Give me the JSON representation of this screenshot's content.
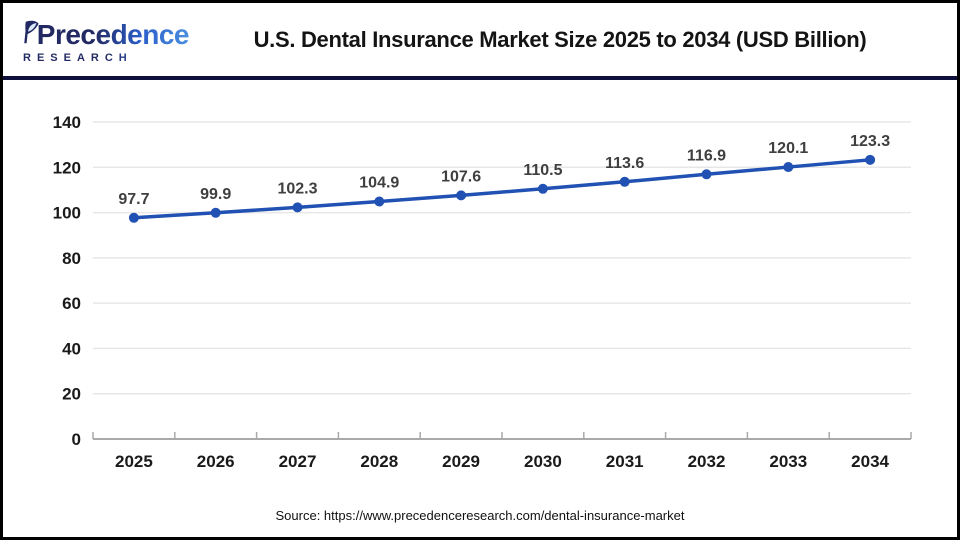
{
  "header": {
    "logo": {
      "word": "Precedence",
      "subtitle": "RESEARCH",
      "leaf_icon": "leaf-p-icon",
      "brand_navy": "#232a63",
      "brand_blue": "#2e6fd8"
    },
    "title": "U.S. Dental Insurance Market Size 2025 to 2034 (USD Billion)"
  },
  "chart_data": {
    "type": "line",
    "title": "U.S. Dental Insurance Market Size 2025 to 2034 (USD Billion)",
    "categories": [
      "2025",
      "2026",
      "2027",
      "2028",
      "2029",
      "2030",
      "2031",
      "2032",
      "2033",
      "2034"
    ],
    "values": [
      97.7,
      99.9,
      102.3,
      104.9,
      107.6,
      110.5,
      113.6,
      116.9,
      120.1,
      123.3
    ],
    "xlabel": "",
    "ylabel": "",
    "ylim": [
      0,
      140
    ],
    "yticks": [
      0,
      20,
      40,
      60,
      80,
      100,
      120,
      140
    ],
    "grid": true,
    "legend": false,
    "data_labels": true,
    "colors": {
      "line": "#2151b2",
      "marker": "#2151b2",
      "data_label": "#3f3f3f",
      "tick_label": "#1a1a1a",
      "gridline": "#e7e7e7",
      "axis_line": "#a9a9a9"
    }
  },
  "footer": {
    "source": "Source: https://www.precedenceresearch.com/dental-insurance-market"
  },
  "colors": {
    "header_divider": "#10103d",
    "frame_border": "#000000",
    "background": "#ffffff"
  }
}
